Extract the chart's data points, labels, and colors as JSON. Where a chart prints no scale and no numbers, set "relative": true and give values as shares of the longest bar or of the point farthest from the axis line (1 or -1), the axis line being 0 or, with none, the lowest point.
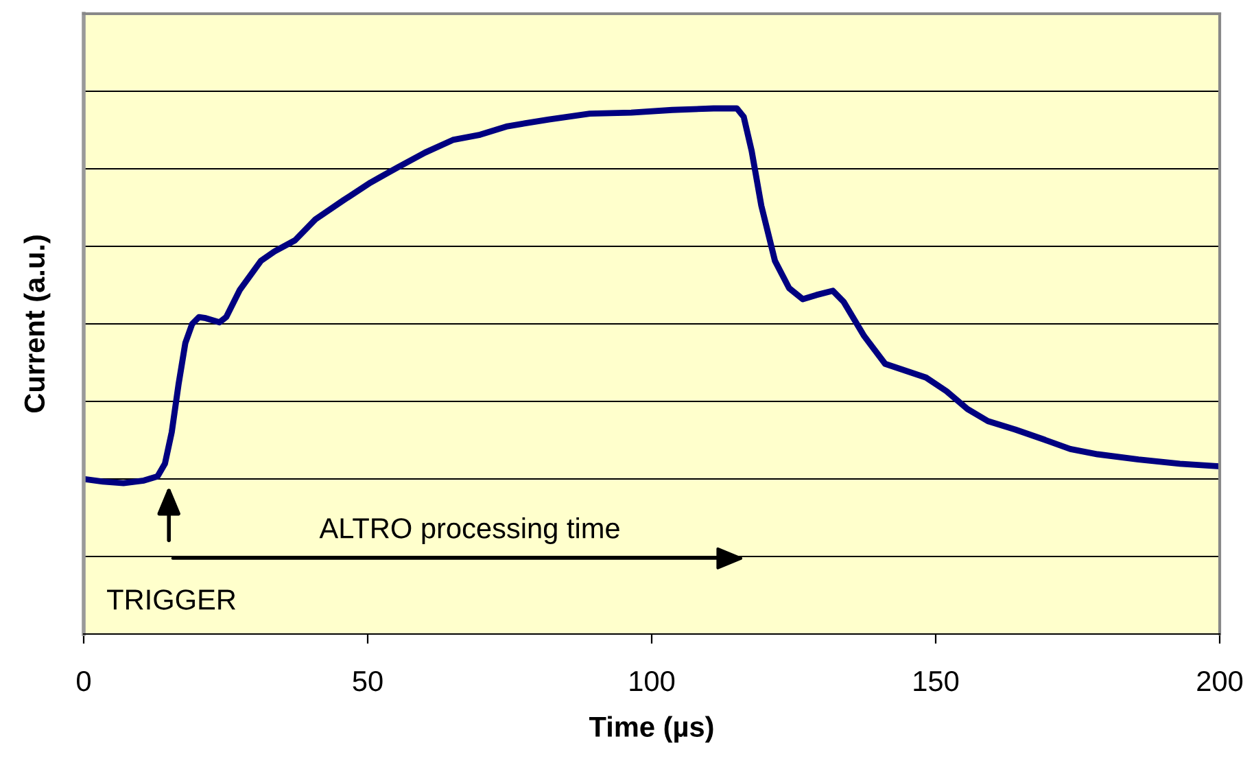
{
  "chart_data": {
    "type": "line",
    "xlabel": "Time (µs)",
    "ylabel": "Current (a.u.)",
    "relative": true,
    "xlim": [
      0,
      200
    ],
    "xticks": [
      0,
      50,
      100,
      150,
      200
    ],
    "grid": "y",
    "legend": false,
    "marker": "none",
    "line_style": "solid",
    "annotations": [
      "ALTRO processing time",
      "TRIGGER"
    ],
    "series": [
      {
        "color": "#000080",
        "x": [
          0,
          3.4,
          7.0,
          10.6,
          13.0,
          14.3,
          15.5,
          16.7,
          17.9,
          19.1,
          20.3,
          21.5,
          23.9,
          25.1,
          27.5,
          31.2,
          33.6,
          37.2,
          40.8,
          45.7,
          50.5,
          55.3,
          60.1,
          65.0,
          69.8,
          74.6,
          81.9,
          89.1,
          96.4,
          103.6,
          110.9,
          115.0,
          116.2,
          117.6,
          119.3,
          121.7,
          124.2,
          126.6,
          129.0,
          131.9,
          133.8,
          137.4,
          141.1,
          144.7,
          148.3,
          151.9,
          155.6,
          159.2,
          164.0,
          168.8,
          173.7,
          178.5,
          185.7,
          193.0,
          200
        ],
        "values": [
          0.295,
          0.29,
          0.287,
          0.292,
          0.3,
          0.324,
          0.384,
          0.475,
          0.554,
          0.59,
          0.603,
          0.601,
          0.593,
          0.603,
          0.655,
          0.71,
          0.728,
          0.749,
          0.789,
          0.825,
          0.859,
          0.888,
          0.916,
          0.94,
          0.95,
          0.966,
          0.979,
          0.99,
          0.992,
          0.997,
          1.0,
          1.0,
          0.984,
          0.919,
          0.815,
          0.71,
          0.658,
          0.637,
          0.645,
          0.653,
          0.632,
          0.567,
          0.514,
          0.501,
          0.488,
          0.462,
          0.428,
          0.405,
          0.389,
          0.371,
          0.352,
          0.342,
          0.332,
          0.324,
          0.319
        ]
      }
    ]
  }
}
